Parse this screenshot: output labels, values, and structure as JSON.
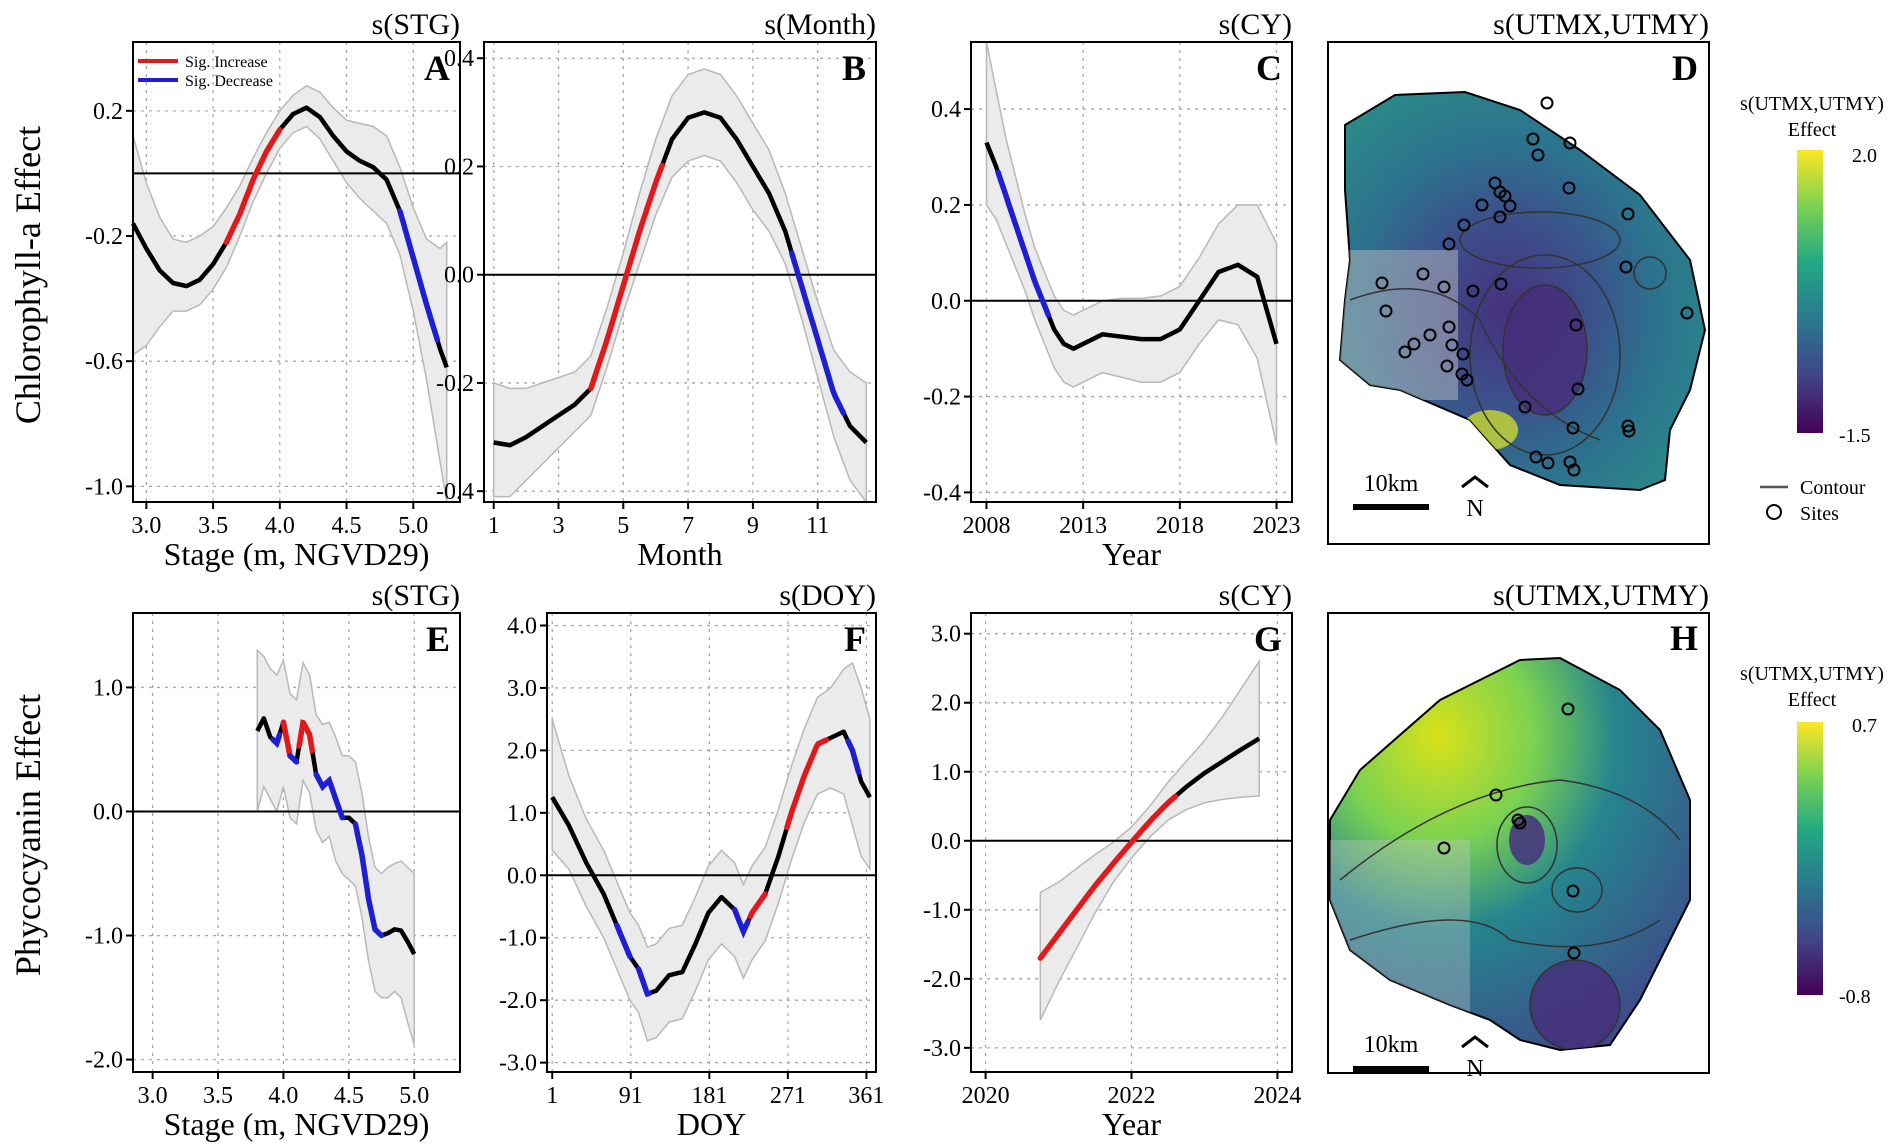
{
  "row_labels": {
    "top": "Chlorophyll-a Effect",
    "bottom": "Phycocyanin Effect"
  },
  "colors": {
    "increase": "#e0191c",
    "decrease": "#1f1fd2",
    "curve": "#000000",
    "ci_fill": "#ebebeb",
    "ci_line": "#b8b8b8",
    "grid": "#a8a8a8"
  },
  "legend_sig": {
    "increase": "Sig. Increase",
    "decrease": "Sig. Decrease"
  },
  "map_legend": {
    "top": {
      "title_line1": "s(UTMX,UTMY)",
      "title_line2": "Effect",
      "max": "2.0",
      "min": "-1.5",
      "contour": "Contour",
      "sites": "Sites"
    },
    "bottom": {
      "title_line1": "s(UTMX,UTMY)",
      "title_line2": "Effect",
      "max": "0.7",
      "min": "-0.8"
    },
    "scale_label": "10km",
    "north_label": "N",
    "viridis": [
      "#fde725",
      "#7ad151",
      "#22a884",
      "#2a788e",
      "#414487",
      "#440154"
    ]
  },
  "chart_data": [
    {
      "id": "A",
      "title": "s(STG)",
      "type": "line",
      "xlabel": "Stage (m, NGVD29)",
      "ylabel": "Chlorophyll-a Effect",
      "xlim": [
        2.9,
        5.35
      ],
      "ylim": [
        -1.05,
        0.42
      ],
      "xticks": [
        3.0,
        3.5,
        4.0,
        4.5,
        5.0
      ],
      "xtick_labels": [
        "3.0",
        "3.5",
        "4.0",
        "4.5",
        "5.0"
      ],
      "yticks": [
        0.2,
        -0.2,
        -0.6,
        -1.0
      ],
      "ytick_labels": [
        "0.2",
        "-0.2",
        "-0.6",
        "-1.0"
      ],
      "hline": 0.0,
      "show_sig_legend": true,
      "series": {
        "x": [
          2.9,
          3.0,
          3.1,
          3.2,
          3.3,
          3.4,
          3.5,
          3.6,
          3.7,
          3.8,
          3.9,
          4.0,
          4.1,
          4.2,
          4.3,
          4.4,
          4.5,
          4.6,
          4.7,
          4.8,
          4.9,
          5.0,
          5.1,
          5.2,
          5.25
        ],
        "y": [
          -0.16,
          -0.24,
          -0.31,
          -0.35,
          -0.36,
          -0.34,
          -0.29,
          -0.22,
          -0.13,
          -0.02,
          0.07,
          0.14,
          0.19,
          0.21,
          0.18,
          0.12,
          0.07,
          0.04,
          0.02,
          -0.02,
          -0.12,
          -0.27,
          -0.42,
          -0.56,
          -0.62
        ],
        "lower": [
          -0.58,
          -0.55,
          -0.49,
          -0.44,
          -0.44,
          -0.42,
          -0.37,
          -0.3,
          -0.2,
          -0.09,
          0.0,
          0.08,
          0.13,
          0.15,
          0.11,
          0.04,
          -0.03,
          -0.08,
          -0.12,
          -0.16,
          -0.26,
          -0.44,
          -0.66,
          -0.92,
          -1.05
        ],
        "upper": [
          0.12,
          -0.03,
          -0.14,
          -0.21,
          -0.22,
          -0.2,
          -0.17,
          -0.11,
          -0.04,
          0.05,
          0.13,
          0.2,
          0.25,
          0.28,
          0.26,
          0.21,
          0.17,
          0.16,
          0.15,
          0.12,
          0.02,
          -0.11,
          -0.21,
          -0.24,
          -0.22
        ]
      },
      "sig": [
        {
          "from": 3.6,
          "to": 4.0,
          "kind": "increase"
        },
        {
          "from": 4.9,
          "to": 5.18,
          "kind": "decrease"
        }
      ]
    },
    {
      "id": "B",
      "title": "s(Month)",
      "type": "line",
      "xlabel": "Month",
      "ylabel": "",
      "xlim": [
        0.7,
        12.8
      ],
      "ylim": [
        -0.42,
        0.43
      ],
      "xticks": [
        1,
        3,
        5,
        7,
        9,
        11
      ],
      "xtick_labels": [
        "1",
        "3",
        "5",
        "7",
        "9",
        "11"
      ],
      "yticks": [
        0.4,
        0.2,
        0.0,
        -0.2,
        -0.4
      ],
      "ytick_labels": [
        "0.4",
        "0.2",
        "0.0",
        "-0.2",
        "-0.4"
      ],
      "hline": 0.0,
      "show_sig_legend": false,
      "series": {
        "x": [
          1,
          1.5,
          2,
          2.5,
          3,
          3.5,
          4,
          4.5,
          5,
          5.5,
          6,
          6.5,
          7,
          7.5,
          8,
          8.5,
          9,
          9.5,
          10,
          10.5,
          11,
          11.5,
          12,
          12.5
        ],
        "y": [
          -0.31,
          -0.315,
          -0.3,
          -0.28,
          -0.26,
          -0.24,
          -0.21,
          -0.12,
          -0.02,
          0.08,
          0.17,
          0.25,
          0.29,
          0.3,
          0.29,
          0.25,
          0.2,
          0.15,
          0.08,
          -0.02,
          -0.12,
          -0.22,
          -0.28,
          -0.31
        ],
        "lower": [
          -0.41,
          -0.41,
          -0.38,
          -0.35,
          -0.32,
          -0.29,
          -0.26,
          -0.17,
          -0.07,
          0.02,
          0.11,
          0.18,
          0.21,
          0.22,
          0.21,
          0.17,
          0.12,
          0.08,
          0.02,
          -0.08,
          -0.19,
          -0.3,
          -0.38,
          -0.42
        ],
        "upper": [
          -0.2,
          -0.21,
          -0.21,
          -0.2,
          -0.19,
          -0.18,
          -0.15,
          -0.06,
          0.04,
          0.15,
          0.25,
          0.33,
          0.37,
          0.38,
          0.37,
          0.33,
          0.28,
          0.23,
          0.15,
          0.05,
          -0.05,
          -0.14,
          -0.18,
          -0.2
        ]
      },
      "sig": [
        {
          "from": 4.0,
          "to": 6.2,
          "kind": "increase"
        },
        {
          "from": 10.2,
          "to": 11.8,
          "kind": "decrease"
        }
      ]
    },
    {
      "id": "C",
      "title": "s(CY)",
      "type": "line",
      "xlabel": "Year",
      "ylabel": "",
      "xlim": [
        2007.2,
        2023.8
      ],
      "ylim": [
        -0.42,
        0.54
      ],
      "xticks": [
        2008,
        2013,
        2018,
        2023
      ],
      "xtick_labels": [
        "2008",
        "2013",
        "2018",
        "2023"
      ],
      "yticks": [
        0.4,
        0.2,
        0.0,
        -0.2,
        -0.4
      ],
      "ytick_labels": [
        "0.4",
        "0.2",
        "0.0",
        "-0.2",
        "-0.4"
      ],
      "hline": 0.0,
      "show_sig_legend": false,
      "series": {
        "x": [
          2008,
          2008.5,
          2009,
          2009.5,
          2010,
          2010.5,
          2011,
          2011.5,
          2012,
          2012.5,
          2013,
          2014,
          2015,
          2016,
          2017,
          2018,
          2019,
          2020,
          2021,
          2022,
          2023
        ],
        "y": [
          0.33,
          0.28,
          0.22,
          0.16,
          0.1,
          0.04,
          -0.01,
          -0.06,
          -0.09,
          -0.1,
          -0.09,
          -0.07,
          -0.075,
          -0.08,
          -0.08,
          -0.06,
          0.0,
          0.06,
          0.075,
          0.05,
          -0.09
        ],
        "lower": [
          0.2,
          0.17,
          0.12,
          0.07,
          0.02,
          -0.04,
          -0.09,
          -0.14,
          -0.17,
          -0.18,
          -0.17,
          -0.15,
          -0.16,
          -0.17,
          -0.17,
          -0.15,
          -0.09,
          -0.04,
          -0.05,
          -0.12,
          -0.3
        ],
        "upper": [
          0.54,
          0.44,
          0.34,
          0.26,
          0.18,
          0.11,
          0.06,
          0.01,
          -0.02,
          -0.03,
          -0.02,
          0.0,
          0.005,
          0.005,
          0.01,
          0.03,
          0.09,
          0.16,
          0.2,
          0.2,
          0.12
        ]
      },
      "sig": [
        {
          "from": 2008.6,
          "to": 2011.2,
          "kind": "decrease"
        }
      ]
    },
    {
      "id": "E",
      "title": "s(STG)",
      "type": "line",
      "xlabel": "Stage (m, NGVD29)",
      "ylabel": "Phycocyanin Effect",
      "xlim": [
        2.85,
        5.35
      ],
      "ylim": [
        -2.1,
        1.6
      ],
      "xticks": [
        3.0,
        3.5,
        4.0,
        4.5,
        5.0
      ],
      "xtick_labels": [
        "3.0",
        "3.5",
        "4.0",
        "4.5",
        "5.0"
      ],
      "yticks": [
        1.0,
        0.0,
        -1.0,
        -2.0
      ],
      "ytick_labels": [
        "1.0",
        "0.0",
        "-1.0",
        "-2.0"
      ],
      "hline": 0.0,
      "show_sig_legend": false,
      "series": {
        "x": [
          3.8,
          3.85,
          3.9,
          3.95,
          4.0,
          4.05,
          4.1,
          4.15,
          4.2,
          4.25,
          4.3,
          4.35,
          4.4,
          4.45,
          4.5,
          4.55,
          4.6,
          4.65,
          4.7,
          4.75,
          4.8,
          4.85,
          4.9,
          4.95,
          5.0
        ],
        "y": [
          0.65,
          0.75,
          0.6,
          0.55,
          0.72,
          0.45,
          0.4,
          0.72,
          0.62,
          0.3,
          0.2,
          0.25,
          0.1,
          -0.05,
          -0.05,
          -0.1,
          -0.35,
          -0.7,
          -0.95,
          -1.0,
          -0.98,
          -0.95,
          -0.96,
          -1.05,
          -1.15
        ],
        "lower": [
          0.0,
          0.2,
          0.1,
          0.0,
          0.2,
          -0.05,
          -0.1,
          0.25,
          0.15,
          -0.15,
          -0.25,
          -0.2,
          -0.4,
          -0.5,
          -0.55,
          -0.6,
          -0.85,
          -1.2,
          -1.45,
          -1.5,
          -1.5,
          -1.45,
          -1.5,
          -1.7,
          -1.88
        ],
        "upper": [
          1.3,
          1.25,
          1.15,
          1.1,
          1.22,
          0.95,
          0.9,
          1.2,
          1.1,
          0.78,
          0.7,
          0.72,
          0.6,
          0.45,
          0.45,
          0.4,
          0.15,
          -0.2,
          -0.45,
          -0.5,
          -0.45,
          -0.42,
          -0.4,
          -0.45,
          -0.5
        ]
      },
      "sig": [
        {
          "from": 3.92,
          "to": 3.97,
          "kind": "decrease"
        },
        {
          "from": 4.0,
          "to": 4.05,
          "kind": "increase"
        },
        {
          "from": 4.05,
          "to": 4.1,
          "kind": "decrease"
        },
        {
          "from": 4.12,
          "to": 4.22,
          "kind": "increase"
        },
        {
          "from": 4.25,
          "to": 4.45,
          "kind": "decrease"
        },
        {
          "from": 4.55,
          "to": 4.75,
          "kind": "decrease"
        }
      ]
    },
    {
      "id": "F",
      "title": "s(DOY)",
      "type": "line",
      "xlabel": "DOY",
      "ylabel": "",
      "xlim": [
        -5,
        372
      ],
      "ylim": [
        -3.15,
        4.2
      ],
      "xticks": [
        1,
        91,
        181,
        271,
        361
      ],
      "xtick_labels": [
        "1",
        "91",
        "181",
        "271",
        "361"
      ],
      "yticks": [
        4.0,
        3.0,
        2.0,
        1.0,
        0.0,
        -1.0,
        -2.0,
        -3.0
      ],
      "ytick_labels": [
        "4.0",
        "3.0",
        "2.0",
        "1.0",
        "0.0",
        "-1.0",
        "-2.0",
        "-3.0"
      ],
      "hline": 0.0,
      "show_sig_legend": false,
      "series": {
        "x": [
          1,
          20,
          40,
          60,
          75,
          90,
          100,
          110,
          120,
          135,
          150,
          165,
          180,
          195,
          210,
          220,
          230,
          245,
          260,
          275,
          290,
          305,
          320,
          335,
          345,
          355,
          365
        ],
        "y": [
          1.25,
          0.8,
          0.2,
          -0.3,
          -0.8,
          -1.3,
          -1.5,
          -1.9,
          -1.85,
          -1.6,
          -1.55,
          -1.1,
          -0.6,
          -0.35,
          -0.55,
          -0.9,
          -0.6,
          -0.3,
          0.3,
          1.0,
          1.6,
          2.1,
          2.2,
          2.3,
          2.0,
          1.5,
          1.25
        ],
        "lower": [
          0.4,
          0.1,
          -0.5,
          -1.0,
          -1.5,
          -2.0,
          -2.2,
          -2.65,
          -2.6,
          -2.35,
          -2.3,
          -1.85,
          -1.35,
          -1.1,
          -1.3,
          -1.65,
          -1.35,
          -1.05,
          -0.45,
          0.25,
          0.85,
          1.3,
          1.4,
          1.3,
          0.8,
          0.3,
          0.1
        ],
        "upper": [
          2.5,
          1.6,
          0.9,
          0.4,
          -0.1,
          -0.6,
          -0.8,
          -1.15,
          -1.1,
          -0.85,
          -0.8,
          -0.35,
          0.15,
          0.4,
          0.2,
          -0.15,
          0.15,
          0.45,
          1.05,
          1.75,
          2.35,
          2.85,
          3.0,
          3.3,
          3.4,
          3.0,
          2.5
        ]
      },
      "sig": [
        {
          "from": 75,
          "to": 90,
          "kind": "decrease"
        },
        {
          "from": 100,
          "to": 112,
          "kind": "decrease"
        },
        {
          "from": 210,
          "to": 225,
          "kind": "decrease"
        },
        {
          "from": 228,
          "to": 245,
          "kind": "increase"
        },
        {
          "from": 270,
          "to": 315,
          "kind": "increase"
        },
        {
          "from": 340,
          "to": 352,
          "kind": "decrease"
        }
      ]
    },
    {
      "id": "G",
      "title": "s(CY)",
      "type": "line",
      "xlabel": "Year",
      "ylabel": "",
      "xlim": [
        2019.8,
        2024.2
      ],
      "ylim": [
        -3.35,
        3.3
      ],
      "xticks": [
        2020,
        2022,
        2024
      ],
      "xtick_labels": [
        "2020",
        "2022",
        "2024"
      ],
      "yticks": [
        3.0,
        2.0,
        1.0,
        0.0,
        -1.0,
        -2.0,
        -3.0
      ],
      "ytick_labels": [
        "3.0",
        "2.0",
        "1.0",
        "0.0",
        "-1.0",
        "-2.0",
        "-3.0"
      ],
      "hline": 0.0,
      "show_sig_legend": false,
      "series": {
        "x": [
          2020.75,
          2021.0,
          2021.25,
          2021.5,
          2021.75,
          2022.0,
          2022.25,
          2022.5,
          2022.75,
          2023.0,
          2023.25,
          2023.5,
          2023.75
        ],
        "y": [
          -1.7,
          -1.35,
          -1.0,
          -0.65,
          -0.33,
          -0.02,
          0.28,
          0.55,
          0.78,
          0.98,
          1.15,
          1.32,
          1.48
        ],
        "lower": [
          -2.6,
          -2.05,
          -1.55,
          -1.05,
          -0.6,
          -0.25,
          0.05,
          0.3,
          0.45,
          0.55,
          0.6,
          0.63,
          0.65
        ],
        "upper": [
          -0.75,
          -0.6,
          -0.4,
          -0.2,
          -0.02,
          0.2,
          0.5,
          0.85,
          1.15,
          1.45,
          1.8,
          2.2,
          2.6
        ]
      },
      "sig": [
        {
          "from": 2020.75,
          "to": 2022.6,
          "kind": "increase"
        }
      ]
    }
  ],
  "maps": [
    {
      "id": "D",
      "title": "s(UTMX,UTMY)"
    },
    {
      "id": "H",
      "title": "s(UTMX,UTMY)"
    }
  ]
}
